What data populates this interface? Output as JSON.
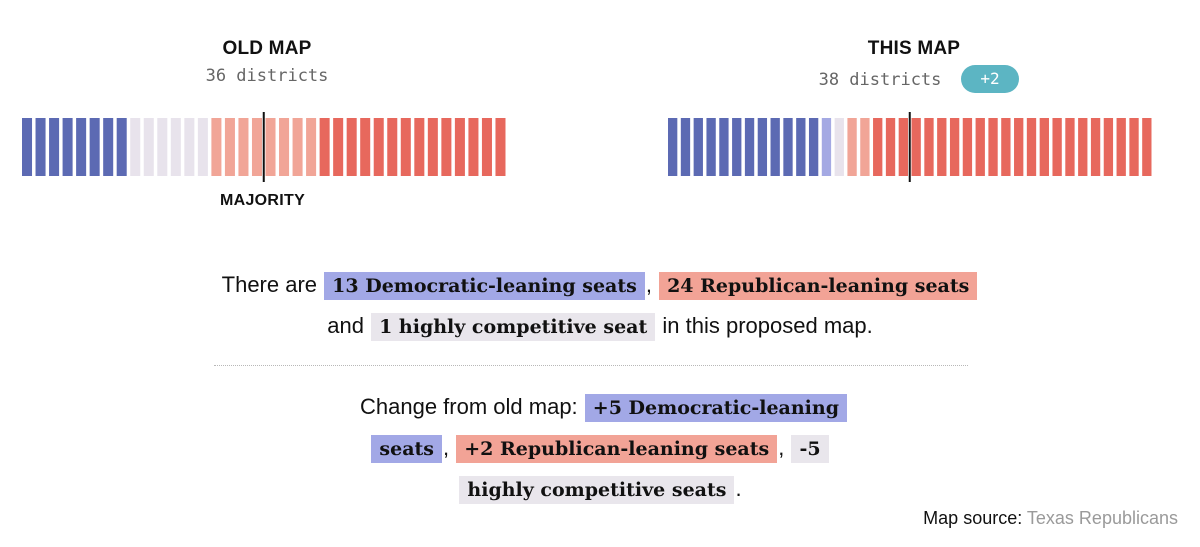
{
  "colors": {
    "dem": "#5c6ab3",
    "lean_dem": "#a4a9e3",
    "competitive": "#e8e3ec",
    "lean_rep": "#f1a597",
    "rep": "#e7685d",
    "badge": "#5cb5c3",
    "dem_chip": "#a2a8e6",
    "rep_chip": "#f2a396",
    "comp_chip": "#e9e6ec"
  },
  "old_map": {
    "title": "OLD MAP",
    "subtitle": "36 districts",
    "majority_label": "MAJORITY"
  },
  "new_map": {
    "title": "THIS MAP",
    "subtitle": "38 districts",
    "badge": "+2"
  },
  "summary": {
    "line1_prefix": "There are",
    "dem_seats": "13 Democratic-leaning seats",
    "comma1": ",",
    "rep_seats": "24 Republican-leaning seats",
    "and": "and",
    "comp_seats": "1 highly competitive seat",
    "line2_suffix": "in this proposed map."
  },
  "change": {
    "prefix": "Change from old map:",
    "dem": "+5 Democratic-leaning seats",
    "comma1": ",",
    "rep": "+2 Republican-leaning seats",
    "comma2": ",",
    "comp": "-5 highly competitive seats",
    "end": "."
  },
  "source": {
    "label": "Map source:",
    "name": "Texas Republicans"
  },
  "chart_data": [
    {
      "type": "bar",
      "title": "OLD MAP",
      "subtitle": "36 districts",
      "categories": [
        "Democratic",
        "Competitive",
        "Lean Republican",
        "Republican"
      ],
      "values": [
        8,
        6,
        8,
        14
      ],
      "total": 36,
      "majority": 18
    },
    {
      "type": "bar",
      "title": "THIS MAP",
      "subtitle": "38 districts",
      "categories": [
        "Democratic",
        "Lean Democratic",
        "Competitive",
        "Lean Republican",
        "Republican"
      ],
      "values": [
        12,
        1,
        1,
        2,
        22
      ],
      "total": 38,
      "majority": 19
    }
  ]
}
